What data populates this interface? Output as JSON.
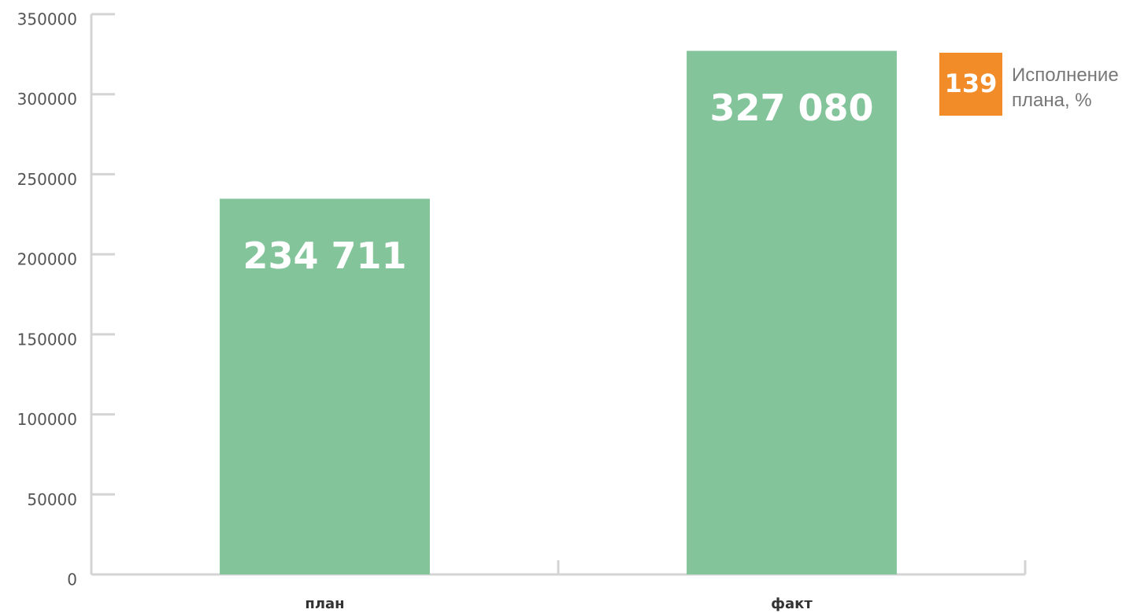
{
  "chart_data": {
    "type": "bar",
    "categories": [
      "план",
      "факт"
    ],
    "values": [
      234711,
      327080
    ],
    "value_labels": [
      "234 711",
      "327 080"
    ],
    "color": "#83c49b",
    "ylim": [
      0,
      350000
    ],
    "yticks": [
      0,
      50000,
      100000,
      150000,
      200000,
      250000,
      300000,
      350000
    ],
    "annotation": {
      "value": 139,
      "label": "Исполнение плана, %",
      "color": "#f28c28"
    }
  }
}
